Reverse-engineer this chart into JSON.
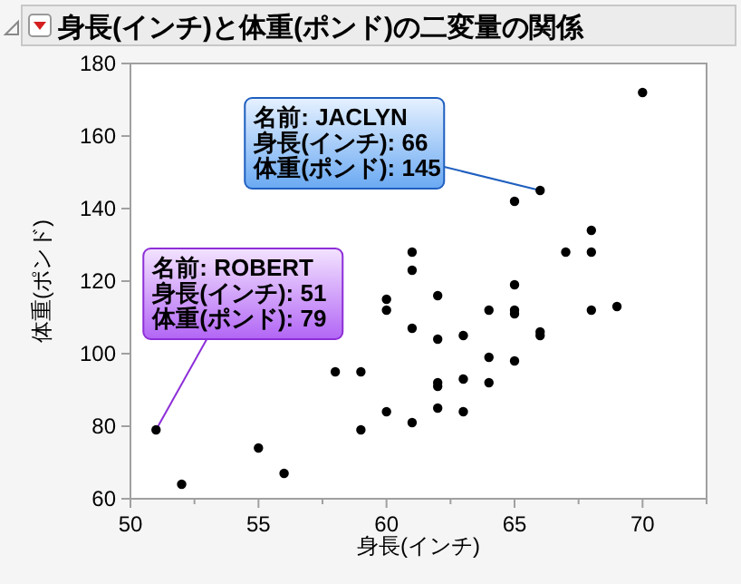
{
  "chart_data": {
    "type": "scatter",
    "title": "身長(インチ)と体重(ポンド)の二変量の関係",
    "xlabel": "身長(インチ)",
    "ylabel": "体重(ポンド)",
    "x": [
      51,
      52,
      55,
      56,
      58,
      59,
      59,
      60,
      60,
      60,
      61,
      61,
      61,
      61,
      62,
      62,
      62,
      62,
      62,
      63,
      63,
      63,
      64,
      64,
      64,
      65,
      65,
      65,
      65,
      65,
      66,
      66,
      66,
      67,
      68,
      68,
      68,
      69,
      70
    ],
    "values": [
      79,
      64,
      74,
      67,
      95,
      95,
      79,
      115,
      112,
      84,
      128,
      123,
      107,
      81,
      116,
      104,
      92,
      91,
      85,
      105,
      93,
      84,
      112,
      99,
      92,
      142,
      119,
      112,
      111,
      98,
      145,
      106,
      105,
      128,
      134,
      128,
      112,
      113,
      172
    ],
    "color": "#000000",
    "marker": "circle",
    "grid": false,
    "xlim": [
      50,
      72.5
    ],
    "xticks": [
      50,
      {
        "value": 52.5,
        "label": null
      },
      55,
      {
        "value": 57.5,
        "label": null
      },
      60,
      {
        "value": 62.5,
        "label": null
      },
      65,
      {
        "value": 67.5,
        "label": null
      },
      70,
      {
        "value": 72.5,
        "label": null
      }
    ],
    "ylim": [
      60,
      180
    ],
    "yticks": [
      60,
      80,
      100,
      120,
      140,
      160,
      180
    ],
    "annotations": [
      {
        "text": "名前: ROBERT\n身長(インチ): 51\n体重(ポンド): 79",
        "x": 51,
        "y": 79
      },
      {
        "text": "名前: JACLYN\n身長(インチ): 66\n体重(ポンド): 145",
        "x": 66,
        "y": 145
      }
    ]
  }
}
